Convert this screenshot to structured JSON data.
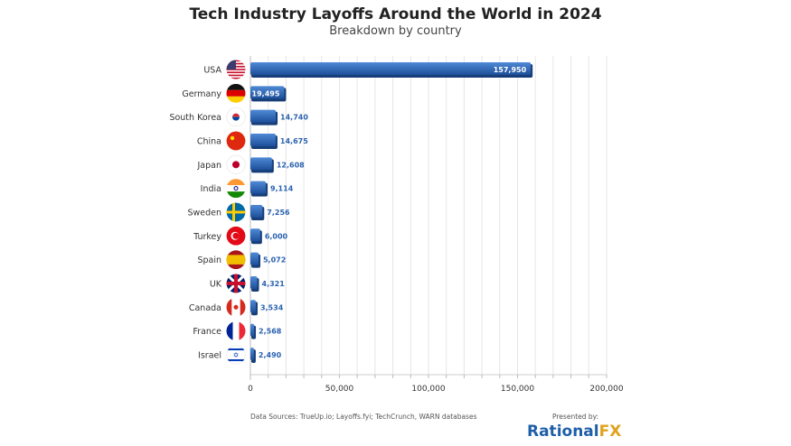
{
  "chart_data": {
    "type": "bar",
    "orientation": "horizontal",
    "title": "Tech Industry Layoffs Around the World in 2024",
    "subtitle": "Breakdown by country",
    "categories": [
      "USA",
      "Germany",
      "South Korea",
      "China",
      "Japan",
      "India",
      "Sweden",
      "Turkey",
      "Spain",
      "UK",
      "Canada",
      "France",
      "Israel"
    ],
    "values": [
      157950,
      19495,
      14740,
      14675,
      12608,
      9114,
      7256,
      6000,
      5072,
      4321,
      3534,
      2568,
      2490
    ],
    "value_labels": [
      "157,950",
      "19,495",
      "14,740",
      "14,675",
      "12,608",
      "9,114",
      "7,256",
      "6,000",
      "5,072",
      "4,321",
      "3,534",
      "2,568",
      "2,490"
    ],
    "xlim": [
      0,
      200000
    ],
    "xticks": [
      0,
      50000,
      100000,
      150000,
      200000
    ],
    "xtick_labels": [
      "0",
      "50,000",
      "100,000",
      "150,000",
      "200,000"
    ],
    "grid": true,
    "xlabel": "",
    "ylabel": "",
    "bar_color": "#2a62b0",
    "label_color": "#2a62b0",
    "flag_icons": [
      "usa-flag",
      "germany-flag",
      "south-korea-flag",
      "china-flag",
      "japan-flag",
      "india-flag",
      "sweden-flag",
      "turkey-flag",
      "spain-flag",
      "uk-flag",
      "canada-flag",
      "france-flag",
      "israel-flag"
    ]
  },
  "footer": {
    "source": "Data Sources: TrueUp.io; Layoffs.fyi; TechCrunch, WARN databases",
    "presented_by": "Presented by:",
    "brand_main": "Rational",
    "brand_accent": "FX"
  }
}
